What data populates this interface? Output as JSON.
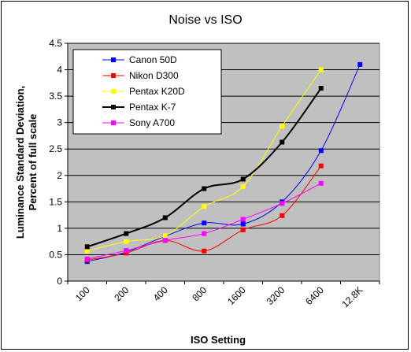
{
  "chart_data": {
    "type": "line",
    "title": "Noise vs ISO",
    "xlabel": "ISO Setting",
    "ylabel_line1": "Luminance Standard Deviation,",
    "ylabel_line2": "Percent of full scale",
    "categories": [
      "100",
      "200",
      "400",
      "800",
      "1600",
      "3200",
      "6400",
      "12.8K"
    ],
    "ylim": [
      0,
      4.5
    ],
    "yticks": [
      "0",
      "0.5",
      "1",
      "1.5",
      "2",
      "2.5",
      "3",
      "3.5",
      "4",
      "4.5"
    ],
    "ytick_values": [
      0,
      0.5,
      1,
      1.5,
      2,
      2.5,
      3,
      3.5,
      4,
      4.5
    ],
    "grid": true,
    "plot_background": "#c0c0c0",
    "legend_position": "top-left",
    "smoothed": true,
    "series": [
      {
        "name": "Canon 50D",
        "color": "#0000ff",
        "values": [
          0.37,
          0.55,
          0.85,
          1.1,
          1.08,
          1.5,
          2.47,
          4.1
        ]
      },
      {
        "name": "Nikon D300",
        "color": "#ff0000",
        "values": [
          0.4,
          0.53,
          0.77,
          0.57,
          0.97,
          1.24,
          2.18,
          null
        ]
      },
      {
        "name": "Pentax K20D",
        "color": "#ffff00",
        "values": [
          0.57,
          0.75,
          0.86,
          1.41,
          1.79,
          2.93,
          4.0,
          null
        ]
      },
      {
        "name": "Pentax K-7",
        "color": "#000000",
        "values": [
          0.65,
          0.9,
          1.2,
          1.75,
          1.93,
          2.63,
          3.65,
          null
        ]
      },
      {
        "name": "Sony A700",
        "color": "#ff00ff",
        "values": [
          0.42,
          0.58,
          0.77,
          0.9,
          1.17,
          1.47,
          1.85,
          null
        ]
      }
    ]
  }
}
